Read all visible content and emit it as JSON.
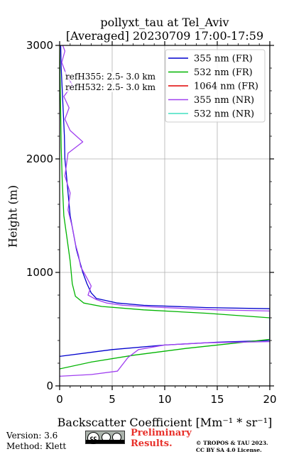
{
  "chart_data": {
    "type": "line",
    "title": "pollyxt_tau at Tel_Aviv",
    "subtitle": "[Averaged] 20230709 17:00-17:59",
    "xlabel": "Backscatter Coefficient [Mm⁻¹ * sr⁻¹]",
    "ylabel": "Height (m)",
    "xlim": [
      0,
      20
    ],
    "ylim": [
      0,
      3000
    ],
    "x_ticks": [
      "0",
      "5",
      "10",
      "15",
      "20"
    ],
    "y_ticks": [
      "0",
      "1000",
      "2000",
      "3000"
    ],
    "grid": true,
    "legend_position": "top-right",
    "annotations": [
      "refH355:  2.5- 3.0 km",
      "refH532:  2.5- 3.0 km"
    ],
    "series": [
      {
        "name": "355 nm (FR)",
        "color": "#0000cd",
        "points": [
          [
            0.0,
            260
          ],
          [
            5,
            320
          ],
          [
            10,
            360
          ],
          [
            15,
            385
          ],
          [
            20,
            400
          ],
          [
            20,
            680
          ],
          [
            14,
            690
          ],
          [
            8,
            710
          ],
          [
            5.5,
            730
          ],
          [
            3.5,
            770
          ],
          [
            3.0,
            820
          ],
          [
            2.6,
            900
          ],
          [
            2.2,
            1000
          ],
          [
            1.6,
            1200
          ],
          [
            1.0,
            1500
          ],
          [
            0.7,
            1800
          ],
          [
            0.5,
            2000
          ],
          [
            0.45,
            2200
          ],
          [
            0.35,
            2400
          ],
          [
            0.25,
            2600
          ],
          [
            0.15,
            2800
          ],
          [
            0.1,
            3000
          ]
        ]
      },
      {
        "name": "532 nm (FR)",
        "color": "#00b400",
        "points": [
          [
            0.0,
            150
          ],
          [
            3,
            210
          ],
          [
            7,
            270
          ],
          [
            12,
            330
          ],
          [
            16,
            370
          ],
          [
            20,
            410
          ],
          [
            20,
            600
          ],
          [
            14,
            640
          ],
          [
            8,
            670
          ],
          [
            4,
            700
          ],
          [
            2.3,
            730
          ],
          [
            1.5,
            790
          ],
          [
            1.2,
            900
          ],
          [
            1.0,
            1100
          ],
          [
            0.7,
            1300
          ],
          [
            0.4,
            1500
          ],
          [
            0.25,
            1800
          ],
          [
            0.15,
            2100
          ],
          [
            0.1,
            2400
          ],
          [
            0.05,
            2700
          ],
          [
            0.0,
            3000
          ]
        ]
      },
      {
        "name": "1064 nm (FR)",
        "color": "#e00000",
        "points": []
      },
      {
        "name": "355 nm (NR)",
        "color": "#a040f0",
        "points": [
          [
            0.0,
            85
          ],
          [
            3,
            100
          ],
          [
            5.5,
            130
          ],
          [
            6.5,
            250
          ],
          [
            7.5,
            320
          ],
          [
            10,
            360
          ],
          [
            14,
            380
          ],
          [
            20,
            390
          ],
          [
            20,
            660
          ],
          [
            15,
            670
          ],
          [
            10,
            690
          ],
          [
            6,
            710
          ],
          [
            4.5,
            730
          ],
          [
            3.5,
            760
          ],
          [
            2.7,
            800
          ],
          [
            3.0,
            880
          ],
          [
            2.6,
            950
          ],
          [
            2.0,
            1050
          ],
          [
            1.8,
            1150
          ],
          [
            1.5,
            1250
          ],
          [
            1.2,
            1400
          ],
          [
            0.8,
            1550
          ],
          [
            1.0,
            1700
          ],
          [
            0.5,
            1850
          ],
          [
            0.8,
            2050
          ],
          [
            2.2,
            2150
          ],
          [
            1.0,
            2250
          ],
          [
            0.5,
            2350
          ],
          [
            0.9,
            2450
          ],
          [
            0.4,
            2550
          ],
          [
            1.2,
            2650
          ],
          [
            0.6,
            2750
          ],
          [
            0.2,
            2850
          ],
          [
            0.5,
            2950
          ],
          [
            0.3,
            3000
          ]
        ]
      },
      {
        "name": "532 nm (NR)",
        "color": "#40e0c0",
        "points": []
      }
    ]
  },
  "footer": {
    "version": "Version: 3.6",
    "method": "Method: Klett",
    "preliminary": "Preliminary",
    "results": "Results.",
    "license_line1": "© TROPOS & TAU 2023.",
    "license_line2": "CC BY SA 4.0 License.",
    "badge_text": "cc"
  }
}
